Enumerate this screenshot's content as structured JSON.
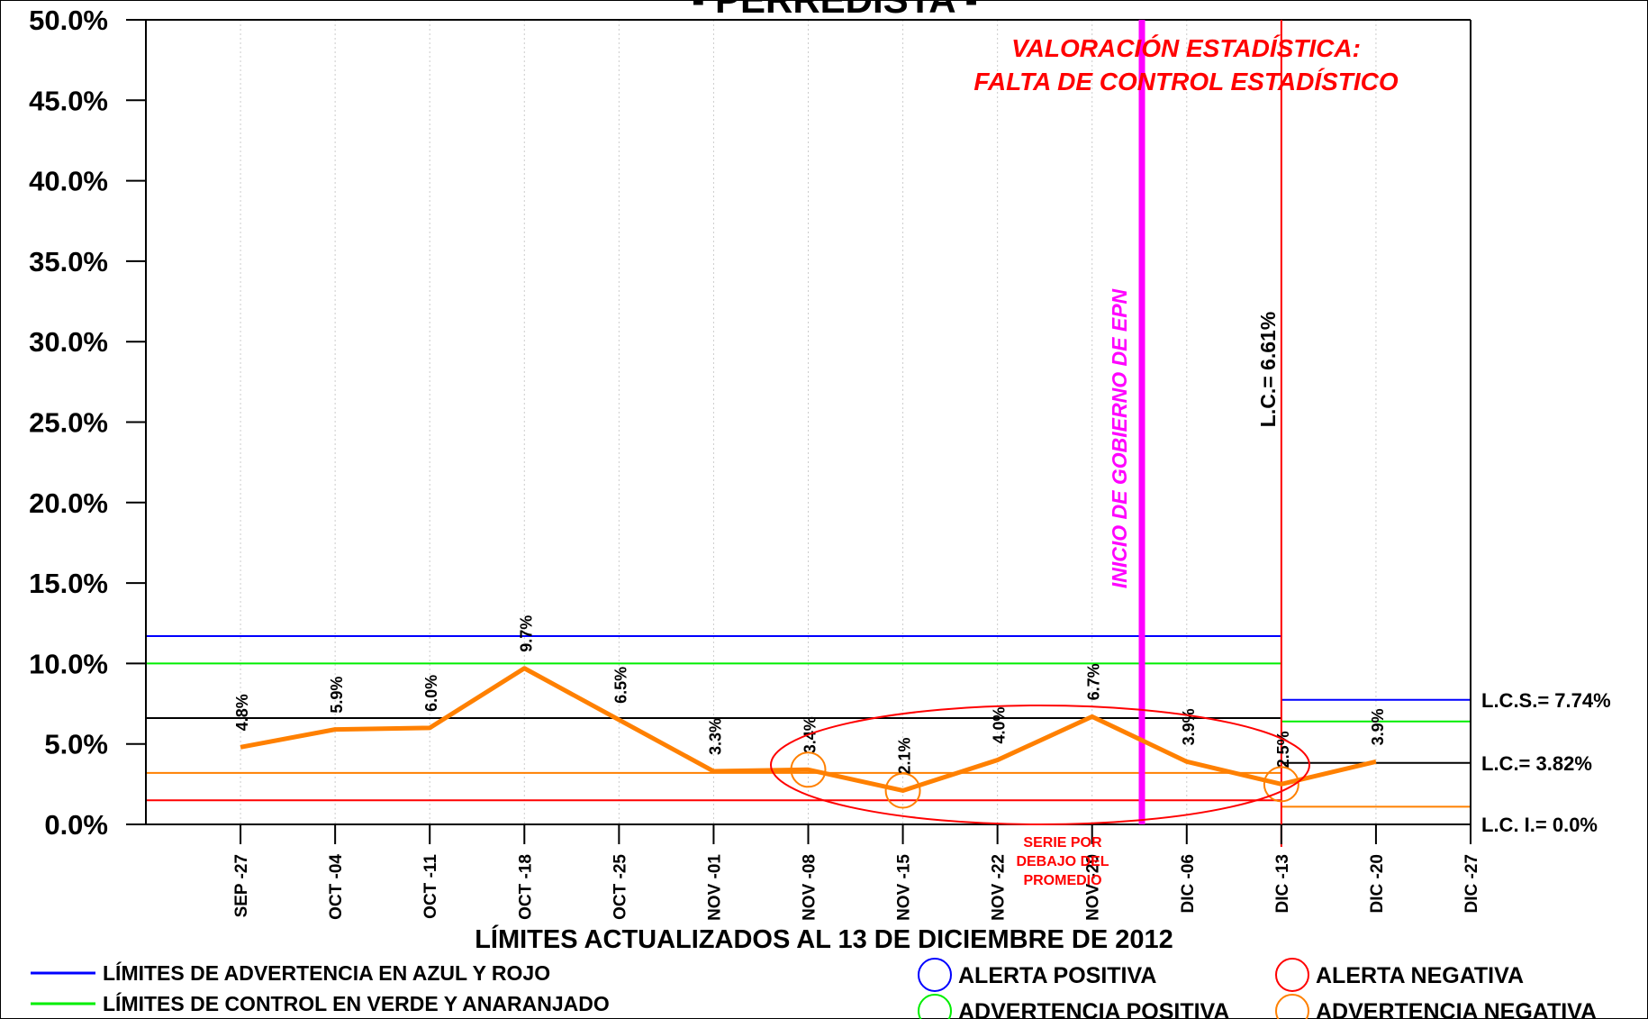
{
  "chart_data": {
    "type": "line",
    "title": "- PERREDISTA -",
    "categories": [
      "SEP -27",
      "OCT -04",
      "OCT -11",
      "OCT -18",
      "OCT -25",
      "NOV -01",
      "NOV -08",
      "NOV -15",
      "NOV -22",
      "NOV -29",
      "DIC -06",
      "DIC -13",
      "DIC -20",
      "DIC -27"
    ],
    "series": [
      {
        "color": "#ff8000",
        "values": [
          4.8,
          5.9,
          6.0,
          9.7,
          6.5,
          3.3,
          3.4,
          2.1,
          4.0,
          6.7,
          3.9,
          2.5,
          3.9,
          null
        ],
        "value_labels": [
          "4.8%",
          "5.9%",
          "6.0%",
          "9.7%",
          "6.5%",
          "3.3%",
          "3.4%",
          "2.1%",
          "4.0%",
          "6.7%",
          "3.9%",
          "2.5%",
          "3.9%",
          null
        ]
      }
    ],
    "ylim": [
      0,
      50
    ],
    "yticks": [
      {
        "value": 0,
        "label": "0.0%"
      },
      {
        "value": 5,
        "label": "5.0%"
      },
      {
        "value": 10,
        "label": "10.0%"
      },
      {
        "value": 15,
        "label": "15.0%"
      },
      {
        "value": 20,
        "label": "20.0%"
      },
      {
        "value": 25,
        "label": "25.0%"
      },
      {
        "value": 30,
        "label": "30.0%"
      },
      {
        "value": 35,
        "label": "35.0%"
      },
      {
        "value": 40,
        "label": "40.0%"
      },
      {
        "value": 45,
        "label": "45.0%"
      },
      {
        "value": 50,
        "label": "50.0%"
      }
    ],
    "reference_sets": [
      {
        "to": "DIC -13",
        "lines": [
          {
            "color": "#0000ff",
            "value": 11.7
          },
          {
            "color": "#00ee00",
            "value": 10.0
          },
          {
            "color": "#000000",
            "value": 6.61
          },
          {
            "color": "#ff8000",
            "value": 3.2
          },
          {
            "color": "#ff0000",
            "value": 1.5
          }
        ]
      },
      {
        "from": "DIC -13",
        "lines": [
          {
            "color": "#0000ff",
            "value": 7.74,
            "label": "L.C.S.= 7.74%"
          },
          {
            "color": "#00ee00",
            "value": 6.4
          },
          {
            "color": "#000000",
            "value": 3.82,
            "label": "L.C.= 3.82%"
          },
          {
            "color": "#ff8000",
            "value": 1.1
          },
          {
            "color": "#800000",
            "value": 0.0,
            "label": "L.C. I.= 0.0%"
          }
        ]
      }
    ],
    "markers": [
      {
        "category": "NOV -08",
        "color": "#ff8000"
      },
      {
        "category": "NOV -15",
        "color": "#ff8000"
      },
      {
        "category": "DIC -13",
        "color": "#ff8000"
      }
    ],
    "annotations": {
      "valoracion": [
        "VALORACIÓN ESTADÍSTICA:",
        "FALTA DE CONTROL ESTADÍSTICO"
      ],
      "inicio": "INICIO DE GOBIERNO DE EPN",
      "lc": "L.C.=  6.61%",
      "serie": [
        "SERIE POR",
        "DEBAJO DEL",
        "PROMEDIO"
      ],
      "footer": "LÍMITES ACTUALIZADOS AL 13 DE DICIEMBRE DE 2012"
    },
    "legend": {
      "lines": [
        {
          "color": "#0000ff",
          "label": "LÍMITES DE ADVERTENCIA EN AZUL Y ROJO"
        },
        {
          "color": "#00ee00",
          "label": "LÍMITES DE CONTROL EN VERDE Y ANARANJADO"
        }
      ],
      "circles": [
        {
          "color": "#0000ff",
          "label": "ALERTA POSITIVA"
        },
        {
          "color": "#ff0000",
          "label": "ALERTA NEGATIVA"
        },
        {
          "color": "#00ee00",
          "label": "ADVERTENCIA POSITIVA"
        },
        {
          "color": "#ff8000",
          "label": "ADVERTENCIA NEGATIVA"
        }
      ]
    }
  }
}
